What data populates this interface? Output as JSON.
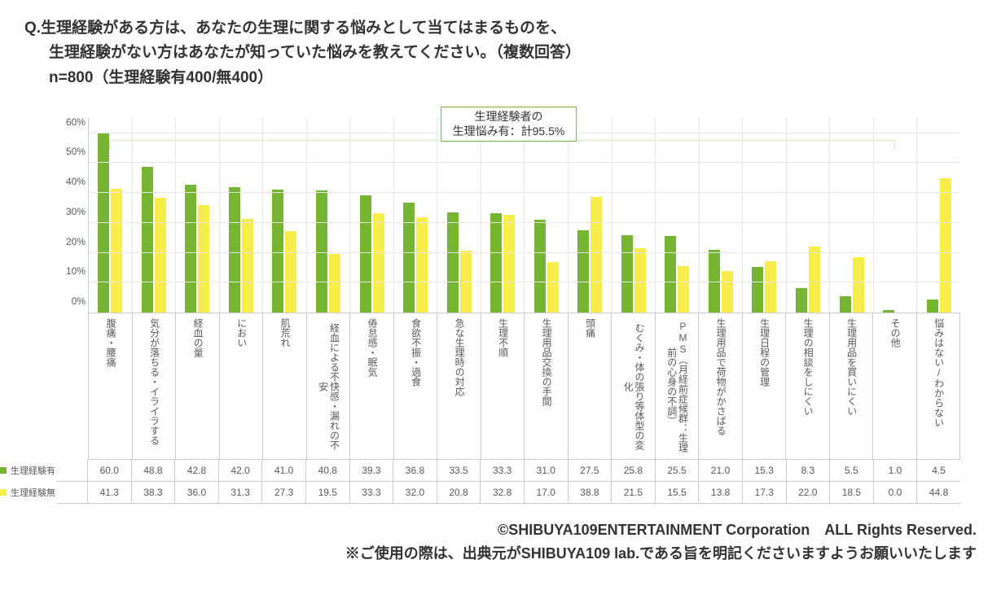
{
  "question": {
    "prefix": "Q.",
    "line1": "生理経験がある方は、あなたの生理に関する悩みとして当てはまるものを、",
    "line2": "生理経験がない方はあなたが知っていた悩みを教えてください。（複数回答）",
    "line3": "n=800（生理経験有400/無400）"
  },
  "annotation": {
    "line1": "生理経験者の",
    "line2": "生理悩み有：計95.5%",
    "border_color": "#76b531",
    "bracket_start_idx": 0,
    "bracket_end_idx": 18
  },
  "chart": {
    "type": "bar",
    "ylim": [
      0,
      65
    ],
    "yticks": [
      0,
      10,
      20,
      30,
      40,
      50,
      60
    ],
    "ytick_suffix": "%",
    "grid_color": "#e6e6e6",
    "axis_color": "#cccccc",
    "background_color": "#ffffff",
    "label_fontsize": 12,
    "categories": [
      "腹痛・腰痛",
      "気分が落ちる・イライラする",
      "経血の量",
      "におい",
      "肌荒れ",
      "経血による不快感・漏れの不安",
      "倦怠感・眠気",
      "食欲不振・過食",
      "急な生理時の対応",
      "生理不順",
      "生理用品交換の手間",
      "頭痛",
      "むくみ・体の張り等体型の変化",
      "PMS（月経前症候群：生理前の心身の不調）",
      "生理用品で荷物がかさばる",
      "生理日程の管理",
      "生理の相談をしにくい",
      "生理用品を買いにくい",
      "その他",
      "悩みはない/わからない"
    ],
    "series": [
      {
        "name": "生理経験有",
        "color": "#76b531",
        "values": [
          60.0,
          48.8,
          42.8,
          42.0,
          41.0,
          40.8,
          39.3,
          36.8,
          33.5,
          33.3,
          31.0,
          27.5,
          25.8,
          25.5,
          21.0,
          15.3,
          8.3,
          5.5,
          1.0,
          4.5
        ]
      },
      {
        "name": "生理経験無",
        "color": "#f7ed4a",
        "values": [
          41.3,
          38.3,
          36.0,
          31.3,
          27.3,
          19.5,
          33.3,
          32.0,
          20.8,
          32.8,
          17.0,
          38.8,
          21.5,
          15.5,
          13.8,
          17.3,
          22.0,
          18.5,
          0.0,
          44.8
        ]
      }
    ]
  },
  "credit": {
    "line1": "©SHIBUYA109ENTERTAINMENT Corporation　ALL Rights Reserved.",
    "line2": "※ご使用の際は、出典元がSHIBUYA109 lab.である旨を明記くださいますようお願いいたします"
  }
}
